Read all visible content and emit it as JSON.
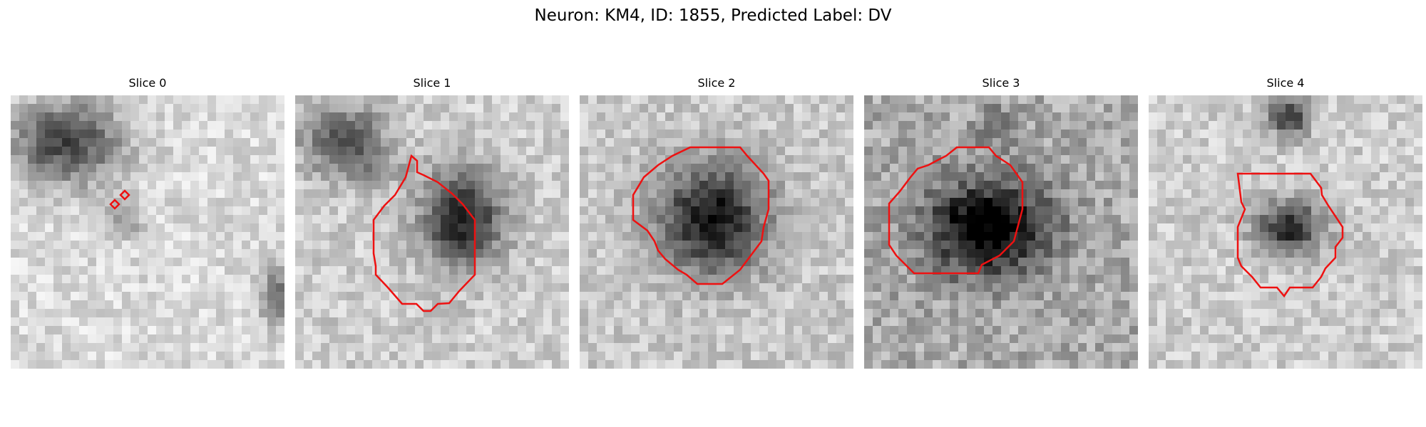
{
  "figure": {
    "title": "Neuron: KM4, ID: 1855, Predicted Label: DV"
  },
  "colors": {
    "background": "#ffffff",
    "contour": "#ee1111",
    "colormap": "grayscale"
  },
  "panels": [
    {
      "title": "Slice 0",
      "icon": "microscopy-slice"
    },
    {
      "title": "Slice 1",
      "icon": "microscopy-slice"
    },
    {
      "title": "Slice 2",
      "icon": "microscopy-slice"
    },
    {
      "title": "Slice 3",
      "icon": "microscopy-slice"
    },
    {
      "title": "Slice 4",
      "icon": "microscopy-slice"
    }
  ]
}
